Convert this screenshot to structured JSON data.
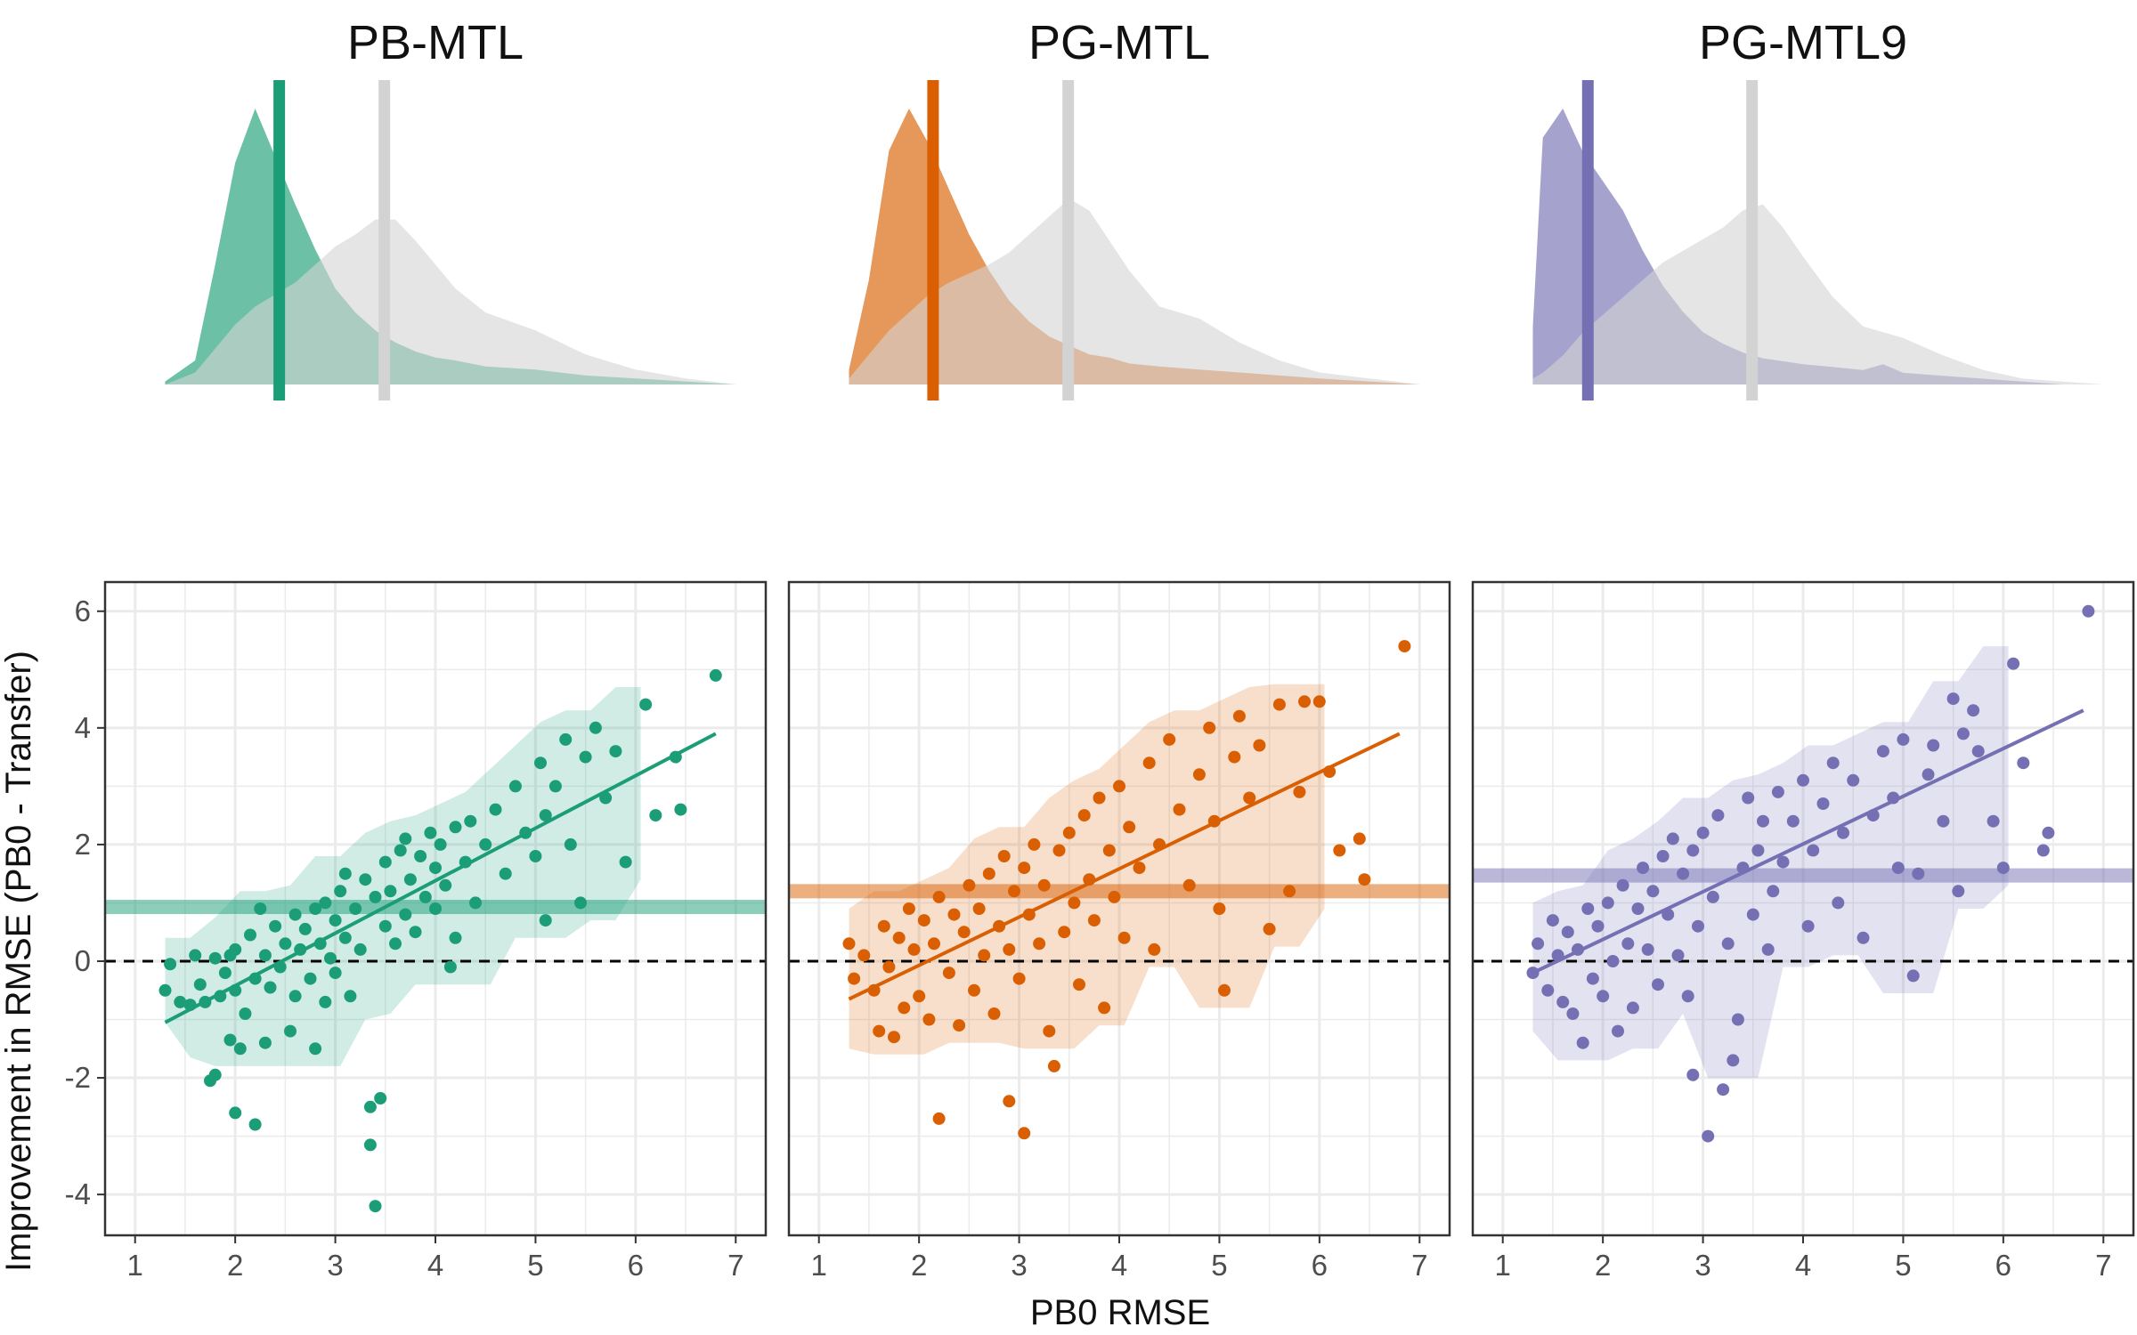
{
  "figure": {
    "x_title": "PB0 RMSE",
    "y_title": "Improvement in RMSE (PB0 - Transfer)"
  },
  "colors": {
    "baseline": "#d3d3d3",
    "zero_line": "#000000",
    "grid": "#ebebeb",
    "panel_border": "#333333"
  },
  "chart_data": [
    {
      "type": "area",
      "panel_title": "PB-MTL",
      "color": "#1b9e77",
      "x": [
        1.3,
        1.6,
        1.8,
        2.0,
        2.2,
        2.4,
        2.6,
        2.8,
        3.0,
        3.2,
        3.4,
        3.6,
        3.8,
        4.0,
        4.2,
        4.5,
        5.0,
        5.5,
        6.0,
        6.5,
        7.0
      ],
      "series": [
        {
          "name": "PB-MTL",
          "values": [
            0.01,
            0.08,
            0.4,
            0.74,
            0.92,
            0.76,
            0.6,
            0.45,
            0.32,
            0.24,
            0.18,
            0.14,
            0.11,
            0.09,
            0.08,
            0.06,
            0.05,
            0.03,
            0.02,
            0.01,
            0.0
          ]
        },
        {
          "name": "PB0",
          "values": [
            0.0,
            0.04,
            0.12,
            0.2,
            0.26,
            0.3,
            0.34,
            0.4,
            0.46,
            0.5,
            0.55,
            0.55,
            0.48,
            0.4,
            0.32,
            0.24,
            0.18,
            0.1,
            0.05,
            0.02,
            0.0
          ]
        }
      ],
      "mean_transfer": 2.44,
      "mean_pb0": 3.49
    },
    {
      "type": "area",
      "panel_title": "PG-MTL",
      "color": "#d95f02",
      "x": [
        1.3,
        1.5,
        1.7,
        1.9,
        2.1,
        2.3,
        2.5,
        2.7,
        2.9,
        3.1,
        3.3,
        3.5,
        3.7,
        3.9,
        4.1,
        4.4,
        4.8,
        5.2,
        5.6,
        6.0,
        6.5,
        7.0
      ],
      "series": [
        {
          "name": "PG-MTL",
          "values": [
            0.05,
            0.35,
            0.78,
            0.92,
            0.8,
            0.65,
            0.5,
            0.38,
            0.28,
            0.21,
            0.16,
            0.13,
            0.1,
            0.09,
            0.07,
            0.06,
            0.05,
            0.04,
            0.03,
            0.02,
            0.01,
            0.0
          ]
        },
        {
          "name": "PB0",
          "values": [
            0.02,
            0.1,
            0.18,
            0.24,
            0.3,
            0.34,
            0.37,
            0.4,
            0.44,
            0.5,
            0.56,
            0.62,
            0.58,
            0.48,
            0.38,
            0.26,
            0.22,
            0.14,
            0.08,
            0.04,
            0.02,
            0.0
          ]
        }
      ],
      "mean_transfer": 2.14,
      "mean_pb0": 3.49
    },
    {
      "type": "area",
      "panel_title": "PG-MTL9",
      "color": "#7570b3",
      "x": [
        1.3,
        1.4,
        1.6,
        1.8,
        2.0,
        2.2,
        2.4,
        2.6,
        2.8,
        3.0,
        3.2,
        3.4,
        3.6,
        3.8,
        4.0,
        4.3,
        4.6,
        4.8,
        5.0,
        5.4,
        5.8,
        6.2,
        6.6,
        7.0
      ],
      "series": [
        {
          "name": "PG-MTL9",
          "values": [
            0.2,
            0.85,
            0.95,
            0.8,
            0.7,
            0.6,
            0.46,
            0.34,
            0.25,
            0.18,
            0.14,
            0.11,
            0.09,
            0.08,
            0.07,
            0.06,
            0.05,
            0.07,
            0.04,
            0.03,
            0.02,
            0.01,
            0.0,
            0.0
          ]
        },
        {
          "name": "PB0",
          "values": [
            0.02,
            0.04,
            0.1,
            0.18,
            0.24,
            0.3,
            0.36,
            0.42,
            0.46,
            0.5,
            0.54,
            0.6,
            0.62,
            0.54,
            0.44,
            0.3,
            0.2,
            0.18,
            0.16,
            0.1,
            0.05,
            0.02,
            0.01,
            0.0
          ]
        }
      ],
      "mean_transfer": 1.85,
      "mean_pb0": 3.49
    },
    {
      "type": "scatter",
      "panel": "PB-MTL",
      "color": "#1b9e77",
      "x_range": [
        0.7,
        7.3
      ],
      "y_range": [
        -4.7,
        6.5
      ],
      "x_ticks": [
        "1",
        "2",
        "3",
        "4",
        "5",
        "6",
        "7"
      ],
      "y_ticks": [
        "-4",
        "-2",
        "0",
        "2",
        "4",
        "6"
      ],
      "mean_improvement": 0.93,
      "fit_line": {
        "x": [
          1.3,
          6.8
        ],
        "y": [
          -1.05,
          3.9
        ]
      },
      "points": [
        [
          1.3,
          -0.5
        ],
        [
          1.35,
          -0.05
        ],
        [
          1.45,
          -0.7
        ],
        [
          1.55,
          -0.75
        ],
        [
          1.6,
          0.1
        ],
        [
          1.65,
          -0.4
        ],
        [
          1.7,
          -0.7
        ],
        [
          1.75,
          -2.05
        ],
        [
          1.8,
          -1.95
        ],
        [
          1.8,
          0.05
        ],
        [
          1.85,
          -0.6
        ],
        [
          1.9,
          -0.2
        ],
        [
          1.95,
          -1.35
        ],
        [
          1.95,
          0.1
        ],
        [
          2.0,
          -2.6
        ],
        [
          2.0,
          -0.5
        ],
        [
          2.0,
          0.2
        ],
        [
          2.05,
          -1.5
        ],
        [
          2.1,
          -0.9
        ],
        [
          2.15,
          0.45
        ],
        [
          2.2,
          -2.8
        ],
        [
          2.2,
          -0.3
        ],
        [
          2.25,
          0.9
        ],
        [
          2.3,
          0.1
        ],
        [
          2.3,
          -1.4
        ],
        [
          2.35,
          -0.45
        ],
        [
          2.4,
          0.6
        ],
        [
          2.45,
          -0.1
        ],
        [
          2.5,
          0.3
        ],
        [
          2.55,
          -1.2
        ],
        [
          2.6,
          0.8
        ],
        [
          2.6,
          -0.6
        ],
        [
          2.65,
          0.2
        ],
        [
          2.7,
          0.55
        ],
        [
          2.75,
          -0.3
        ],
        [
          2.8,
          -1.5
        ],
        [
          2.8,
          0.9
        ],
        [
          2.85,
          0.3
        ],
        [
          2.9,
          -0.7
        ],
        [
          2.9,
          1.0
        ],
        [
          2.95,
          0.05
        ],
        [
          3.0,
          0.7
        ],
        [
          3.0,
          -0.2
        ],
        [
          3.05,
          1.2
        ],
        [
          3.1,
          0.4
        ],
        [
          3.1,
          1.5
        ],
        [
          3.15,
          -0.6
        ],
        [
          3.2,
          0.9
        ],
        [
          3.25,
          0.2
        ],
        [
          3.3,
          1.4
        ],
        [
          3.35,
          -3.15
        ],
        [
          3.35,
          -2.5
        ],
        [
          3.4,
          -4.2
        ],
        [
          3.4,
          1.1
        ],
        [
          3.45,
          -2.35
        ],
        [
          3.5,
          0.6
        ],
        [
          3.5,
          1.7
        ],
        [
          3.55,
          1.2
        ],
        [
          3.6,
          0.3
        ],
        [
          3.65,
          1.9
        ],
        [
          3.7,
          0.8
        ],
        [
          3.7,
          2.1
        ],
        [
          3.75,
          1.4
        ],
        [
          3.8,
          0.5
        ],
        [
          3.85,
          1.8
        ],
        [
          3.9,
          1.1
        ],
        [
          3.95,
          2.2
        ],
        [
          4.0,
          1.6
        ],
        [
          4.0,
          0.9
        ],
        [
          4.05,
          2.0
        ],
        [
          4.1,
          1.3
        ],
        [
          4.15,
          -0.1
        ],
        [
          4.2,
          2.3
        ],
        [
          4.2,
          0.4
        ],
        [
          4.3,
          1.7
        ],
        [
          4.35,
          2.4
        ],
        [
          4.4,
          1.0
        ],
        [
          4.5,
          2.0
        ],
        [
          4.6,
          2.6
        ],
        [
          4.7,
          1.5
        ],
        [
          4.8,
          3.0
        ],
        [
          4.9,
          2.2
        ],
        [
          5.0,
          1.8
        ],
        [
          5.05,
          3.4
        ],
        [
          5.1,
          2.5
        ],
        [
          5.1,
          0.7
        ],
        [
          5.2,
          3.0
        ],
        [
          5.3,
          3.8
        ],
        [
          5.35,
          2.0
        ],
        [
          5.45,
          1.0
        ],
        [
          5.5,
          3.5
        ],
        [
          5.6,
          4.0
        ],
        [
          5.7,
          2.8
        ],
        [
          5.8,
          3.6
        ],
        [
          5.9,
          1.7
        ],
        [
          6.1,
          4.4
        ],
        [
          6.2,
          2.5
        ],
        [
          6.4,
          3.5
        ],
        [
          6.45,
          2.6
        ],
        [
          6.8,
          4.9
        ]
      ]
    },
    {
      "type": "scatter",
      "panel": "PG-MTL",
      "color": "#d95f02",
      "x_range": [
        0.7,
        7.3
      ],
      "y_range": [
        -4.7,
        6.5
      ],
      "x_ticks": [
        "1",
        "2",
        "3",
        "4",
        "5",
        "6",
        "7"
      ],
      "y_ticks": [
        "-4",
        "-2",
        "0",
        "2",
        "4",
        "6"
      ],
      "mean_improvement": 1.2,
      "fit_line": {
        "x": [
          1.3,
          6.8
        ],
        "y": [
          -0.65,
          3.9
        ]
      },
      "points": [
        [
          1.3,
          0.3
        ],
        [
          1.35,
          -0.3
        ],
        [
          1.45,
          0.1
        ],
        [
          1.55,
          -0.5
        ],
        [
          1.6,
          -1.2
        ],
        [
          1.65,
          0.6
        ],
        [
          1.7,
          -0.1
        ],
        [
          1.75,
          -1.3
        ],
        [
          1.8,
          0.4
        ],
        [
          1.85,
          -0.8
        ],
        [
          1.9,
          0.9
        ],
        [
          1.95,
          0.2
        ],
        [
          2.0,
          -0.6
        ],
        [
          2.05,
          0.7
        ],
        [
          2.1,
          -1.0
        ],
        [
          2.15,
          0.3
        ],
        [
          2.2,
          -2.7
        ],
        [
          2.2,
          1.1
        ],
        [
          2.3,
          -0.2
        ],
        [
          2.35,
          0.8
        ],
        [
          2.4,
          -1.1
        ],
        [
          2.45,
          0.5
        ],
        [
          2.5,
          1.3
        ],
        [
          2.55,
          -0.5
        ],
        [
          2.6,
          0.9
        ],
        [
          2.65,
          0.1
        ],
        [
          2.7,
          1.5
        ],
        [
          2.75,
          -0.9
        ],
        [
          2.8,
          0.6
        ],
        [
          2.85,
          1.8
        ],
        [
          2.9,
          -2.4
        ],
        [
          2.9,
          0.2
        ],
        [
          2.95,
          1.2
        ],
        [
          3.0,
          -0.3
        ],
        [
          3.05,
          -2.95
        ],
        [
          3.05,
          1.6
        ],
        [
          3.1,
          0.8
        ],
        [
          3.15,
          2.0
        ],
        [
          3.2,
          0.3
        ],
        [
          3.25,
          1.3
        ],
        [
          3.3,
          -1.2
        ],
        [
          3.35,
          -1.8
        ],
        [
          3.4,
          1.9
        ],
        [
          3.45,
          0.5
        ],
        [
          3.5,
          2.2
        ],
        [
          3.55,
          1.0
        ],
        [
          3.6,
          -0.4
        ],
        [
          3.65,
          2.5
        ],
        [
          3.7,
          1.4
        ],
        [
          3.75,
          0.7
        ],
        [
          3.8,
          2.8
        ],
        [
          3.85,
          -0.8
        ],
        [
          3.9,
          1.9
        ],
        [
          3.95,
          1.1
        ],
        [
          4.0,
          3.0
        ],
        [
          4.05,
          0.4
        ],
        [
          4.1,
          2.3
        ],
        [
          4.2,
          1.6
        ],
        [
          4.3,
          3.4
        ],
        [
          4.35,
          0.2
        ],
        [
          4.4,
          2.0
        ],
        [
          4.5,
          3.8
        ],
        [
          4.6,
          2.6
        ],
        [
          4.7,
          1.3
        ],
        [
          4.8,
          3.2
        ],
        [
          4.9,
          4.0
        ],
        [
          4.95,
          2.4
        ],
        [
          5.0,
          0.9
        ],
        [
          5.05,
          -0.5
        ],
        [
          5.15,
          3.5
        ],
        [
          5.2,
          4.2
        ],
        [
          5.3,
          2.8
        ],
        [
          5.4,
          3.7
        ],
        [
          5.5,
          0.55
        ],
        [
          5.6,
          4.4
        ],
        [
          5.7,
          1.2
        ],
        [
          5.8,
          2.9
        ],
        [
          5.85,
          4.45
        ],
        [
          6.0,
          4.45
        ],
        [
          6.1,
          3.25
        ],
        [
          6.2,
          1.9
        ],
        [
          6.4,
          2.1
        ],
        [
          6.45,
          1.4
        ],
        [
          6.85,
          5.4
        ]
      ]
    },
    {
      "type": "scatter",
      "panel": "PG-MTL9",
      "color": "#7570b3",
      "x_range": [
        0.7,
        7.3
      ],
      "y_range": [
        -4.7,
        6.5
      ],
      "x_ticks": [
        "1",
        "2",
        "3",
        "4",
        "5",
        "6",
        "7"
      ],
      "y_ticks": [
        "-4",
        "-2",
        "0",
        "2",
        "4",
        "6"
      ],
      "mean_improvement": 1.47,
      "fit_line": {
        "x": [
          1.3,
          6.8
        ],
        "y": [
          -0.2,
          4.3
        ]
      },
      "points": [
        [
          1.3,
          -0.2
        ],
        [
          1.35,
          0.3
        ],
        [
          1.45,
          -0.5
        ],
        [
          1.5,
          0.7
        ],
        [
          1.55,
          0.1
        ],
        [
          1.6,
          -0.7
        ],
        [
          1.65,
          0.5
        ],
        [
          1.7,
          -0.9
        ],
        [
          1.75,
          0.2
        ],
        [
          1.8,
          -1.4
        ],
        [
          1.85,
          0.9
        ],
        [
          1.9,
          -0.3
        ],
        [
          1.95,
          0.6
        ],
        [
          2.0,
          -0.6
        ],
        [
          2.05,
          1.0
        ],
        [
          2.1,
          0.0
        ],
        [
          2.15,
          -1.2
        ],
        [
          2.2,
          1.3
        ],
        [
          2.25,
          0.3
        ],
        [
          2.3,
          -0.8
        ],
        [
          2.35,
          0.9
        ],
        [
          2.4,
          1.6
        ],
        [
          2.45,
          0.2
        ],
        [
          2.5,
          1.2
        ],
        [
          2.55,
          -0.4
        ],
        [
          2.6,
          1.8
        ],
        [
          2.65,
          0.8
        ],
        [
          2.7,
          2.1
        ],
        [
          2.75,
          0.1
        ],
        [
          2.8,
          1.5
        ],
        [
          2.85,
          -0.6
        ],
        [
          2.9,
          -1.95
        ],
        [
          2.9,
          1.9
        ],
        [
          2.95,
          0.6
        ],
        [
          3.0,
          2.2
        ],
        [
          3.05,
          -3.0
        ],
        [
          3.1,
          1.1
        ],
        [
          3.15,
          2.5
        ],
        [
          3.2,
          -2.2
        ],
        [
          3.25,
          0.3
        ],
        [
          3.3,
          -1.7
        ],
        [
          3.35,
          -1.0
        ],
        [
          3.4,
          1.6
        ],
        [
          3.45,
          2.8
        ],
        [
          3.5,
          0.8
        ],
        [
          3.55,
          1.9
        ],
        [
          3.6,
          2.4
        ],
        [
          3.65,
          0.2
        ],
        [
          3.7,
          1.2
        ],
        [
          3.75,
          2.9
        ],
        [
          3.8,
          1.7
        ],
        [
          3.9,
          2.4
        ],
        [
          4.0,
          3.1
        ],
        [
          4.05,
          0.6
        ],
        [
          4.1,
          1.9
        ],
        [
          4.2,
          2.7
        ],
        [
          4.3,
          3.4
        ],
        [
          4.35,
          1.0
        ],
        [
          4.4,
          2.2
        ],
        [
          4.5,
          3.1
        ],
        [
          4.6,
          0.4
        ],
        [
          4.7,
          2.5
        ],
        [
          4.8,
          3.6
        ],
        [
          4.9,
          2.8
        ],
        [
          4.95,
          1.6
        ],
        [
          5.0,
          3.8
        ],
        [
          5.1,
          -0.25
        ],
        [
          5.15,
          1.5
        ],
        [
          5.25,
          3.2
        ],
        [
          5.3,
          3.7
        ],
        [
          5.4,
          2.4
        ],
        [
          5.5,
          4.5
        ],
        [
          5.55,
          1.2
        ],
        [
          5.6,
          3.9
        ],
        [
          5.7,
          4.3
        ],
        [
          5.75,
          3.6
        ],
        [
          5.9,
          2.4
        ],
        [
          6.0,
          1.6
        ],
        [
          6.1,
          5.1
        ],
        [
          6.2,
          3.4
        ],
        [
          6.4,
          1.9
        ],
        [
          6.45,
          2.2
        ],
        [
          6.85,
          6.0
        ]
      ]
    }
  ]
}
